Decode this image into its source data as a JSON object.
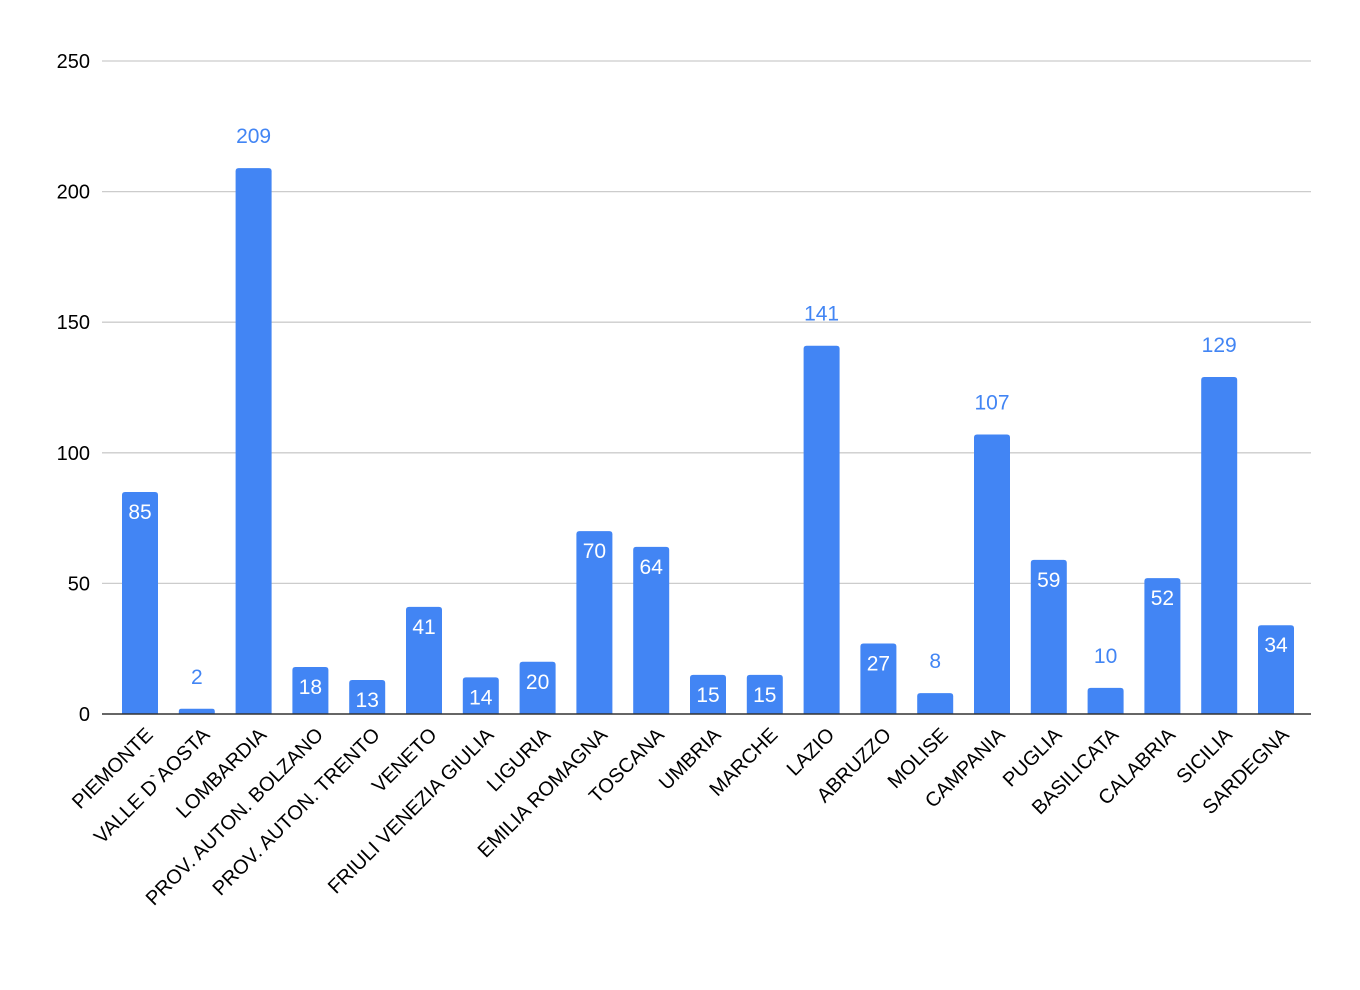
{
  "chart_data": {
    "type": "bar",
    "title": "",
    "xlabel": "",
    "ylabel": "",
    "ylim": [
      0,
      250
    ],
    "yticks": [
      0,
      50,
      100,
      150,
      200,
      250
    ],
    "grid": true,
    "legend": "none",
    "colors": {
      "bar": "#4285f4",
      "label_outside": "#4285f4",
      "label_inside": "#ffffff",
      "grid": "#cccccc",
      "axis": "#333333"
    },
    "categories": [
      "PIEMONTE",
      "VALLE D`AOSTA",
      "LOMBARDIA",
      "PROV. AUTON. BOLZANO",
      "PROV. AUTON. TRENTO",
      "VENETO",
      "FRIULI VENEZIA GIULIA",
      "LIGURIA",
      "EMILIA ROMAGNA",
      "TOSCANA",
      "UMBRIA",
      "MARCHE",
      "LAZIO",
      "ABRUZZO",
      "MOLISE",
      "CAMPANIA",
      "PUGLIA",
      "BASILICATA",
      "CALABRIA",
      "SICILIA",
      "SARDEGNA"
    ],
    "values": [
      85,
      2,
      209,
      18,
      13,
      41,
      14,
      20,
      70,
      64,
      15,
      15,
      141,
      27,
      8,
      107,
      59,
      10,
      52,
      129,
      34
    ],
    "data_labels": [
      "85",
      "2",
      "209",
      "18",
      "13",
      "41",
      "14",
      "20",
      "70",
      "64",
      "15",
      "15",
      "141",
      "27",
      "8",
      "107",
      "59",
      "10",
      "52",
      "129",
      "34"
    ]
  }
}
